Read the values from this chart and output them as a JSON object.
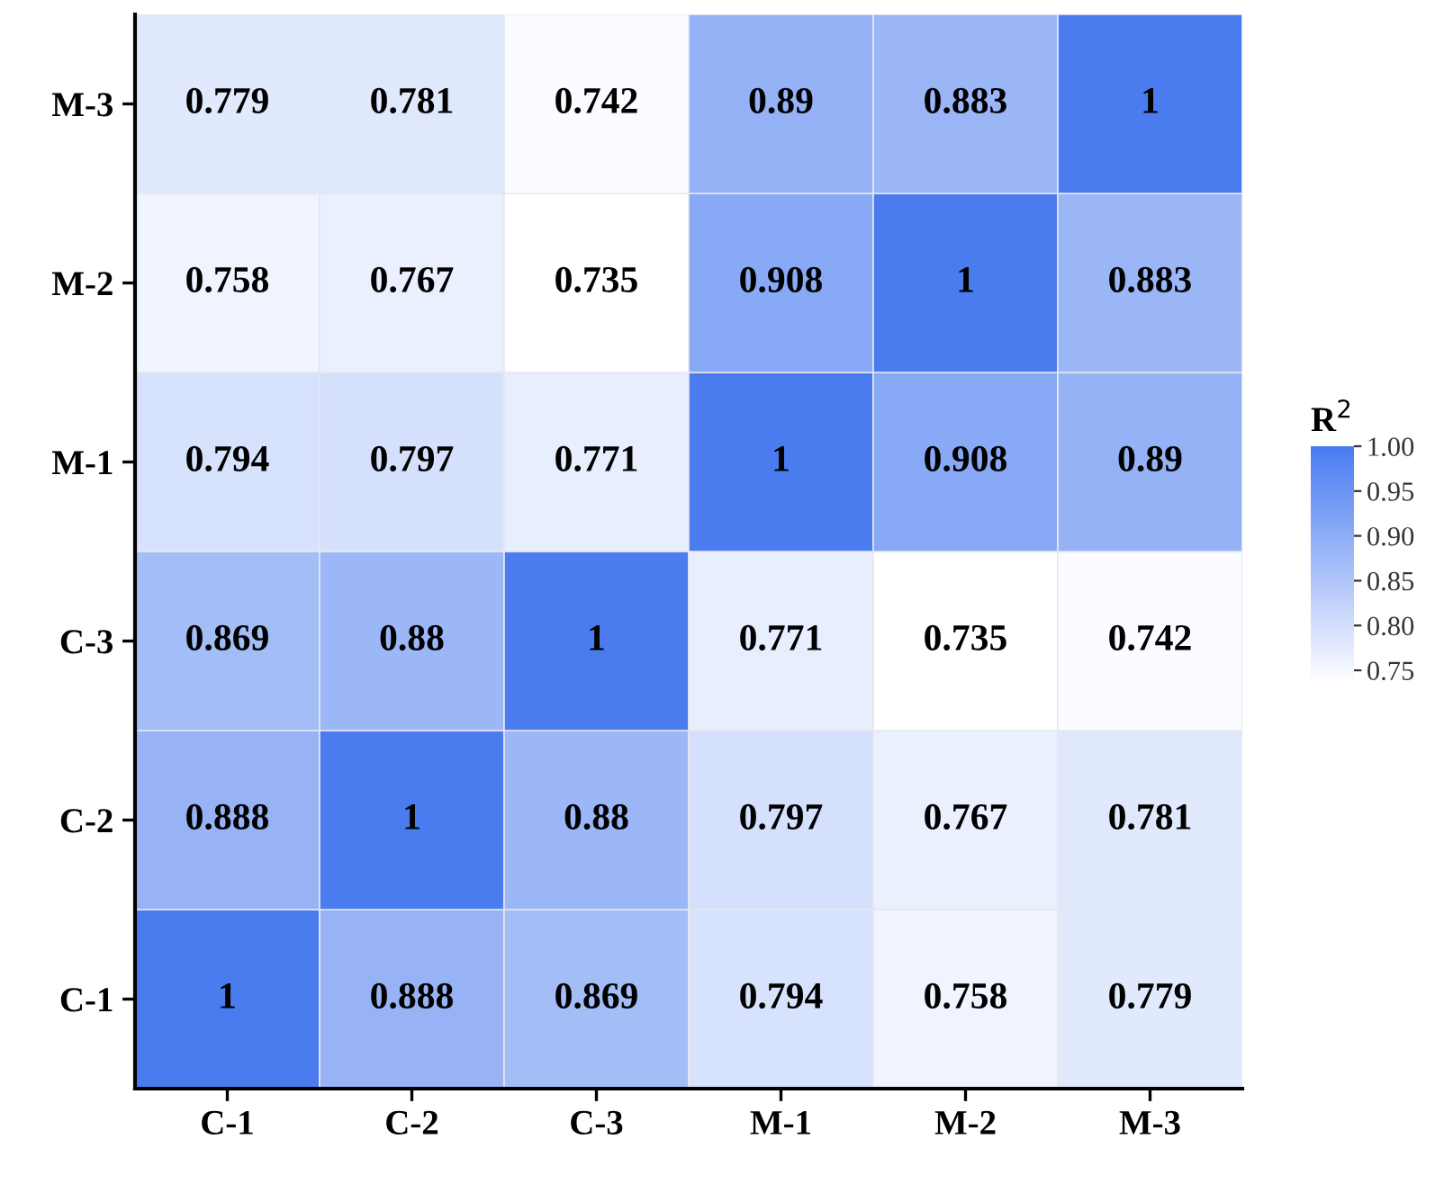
{
  "chart_data": {
    "type": "heatmap",
    "categories": [
      "C-1",
      "C-2",
      "C-3",
      "M-1",
      "M-2",
      "M-3"
    ],
    "y_categories": [
      "M-3",
      "M-2",
      "M-1",
      "C-3",
      "C-2",
      "C-1"
    ],
    "cells": [
      [
        0.779,
        0.781,
        0.742,
        0.89,
        0.883,
        1
      ],
      [
        0.758,
        0.767,
        0.735,
        0.908,
        1,
        0.883
      ],
      [
        0.794,
        0.797,
        0.771,
        1,
        0.908,
        0.89
      ],
      [
        0.869,
        0.88,
        1,
        0.771,
        0.735,
        0.742
      ],
      [
        0.888,
        1,
        0.88,
        0.797,
        0.767,
        0.781
      ],
      [
        1,
        0.888,
        0.869,
        0.794,
        0.758,
        0.779
      ]
    ],
    "data_labels": true,
    "clabel": "R$^{2}$",
    "clim": [
      0.735,
      1.0
    ],
    "cticks": [
      0.75,
      {
        "value": 0.8,
        "label": "0.80"
      },
      0.85,
      {
        "value": 0.9,
        "label": "0.90"
      },
      0.95,
      {
        "value": 1.0,
        "label": "1.00"
      }
    ],
    "colors": [
      "#ffffff",
      "#4a7cf0"
    ]
  }
}
